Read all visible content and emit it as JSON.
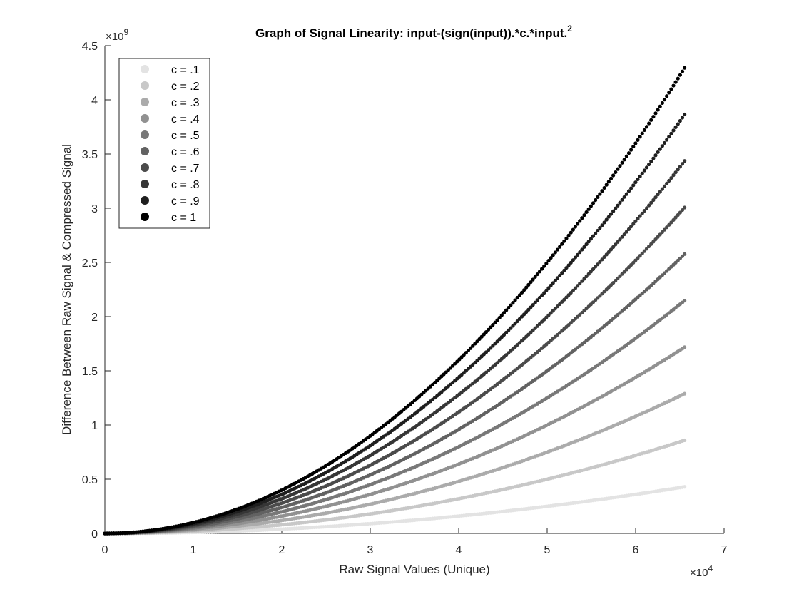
{
  "chart_data": {
    "type": "scatter",
    "title": "Graph of Signal Linearity: input-(sign(input)).*c.*input.",
    "title_superscript": "2",
    "xlabel": "Raw Signal Values (Unique)",
    "ylabel": "Difference Between Raw Signal & Compressed Signal",
    "x_exponent_label": "×10",
    "x_exponent_power": "4",
    "y_exponent_label": "×10",
    "y_exponent_power": "9",
    "xlim": [
      0,
      7
    ],
    "ylim": [
      0,
      4.5
    ],
    "x_unit_multiplier": 10000,
    "y_unit_multiplier": 1000000000,
    "xticks": [
      0,
      1,
      2,
      3,
      4,
      5,
      6,
      7
    ],
    "xtick_labels": [
      "0",
      "1",
      "2",
      "3",
      "4",
      "5",
      "6",
      "7"
    ],
    "yticks": [
      0,
      0.5,
      1,
      1.5,
      2,
      2.5,
      3,
      3.5,
      4,
      4.5
    ],
    "ytick_labels": [
      "0",
      "0.5",
      "1",
      "1.5",
      "2",
      "2.5",
      "3",
      "3.5",
      "4",
      "4.5"
    ],
    "x_range": [
      0,
      6.5535
    ],
    "legend_position": "top-left",
    "grid": false,
    "series": [
      {
        "name": "c = .1",
        "c": 0.1,
        "color": "#e3e3e3",
        "y_end": 0.43
      },
      {
        "name": "c = .2",
        "c": 0.2,
        "color": "#c8c8c8",
        "y_end": 0.86
      },
      {
        "name": "c = .3",
        "c": 0.3,
        "color": "#ababab",
        "y_end": 1.29
      },
      {
        "name": "c = .4",
        "c": 0.4,
        "color": "#919191",
        "y_end": 1.72
      },
      {
        "name": "c = .5",
        "c": 0.5,
        "color": "#787878",
        "y_end": 2.15
      },
      {
        "name": "c = .6",
        "c": 0.6,
        "color": "#626262",
        "y_end": 2.58
      },
      {
        "name": "c = .7",
        "c": 0.7,
        "color": "#4b4b4b",
        "y_end": 3.0
      },
      {
        "name": "c = .8",
        "c": 0.8,
        "color": "#363636",
        "y_end": 3.43
      },
      {
        "name": "c = .9",
        "c": 0.9,
        "color": "#1f1f1f",
        "y_end": 3.86
      },
      {
        "name": "c = 1",
        "c": 1.0,
        "color": "#000000",
        "y_end": 4.29
      }
    ]
  }
}
